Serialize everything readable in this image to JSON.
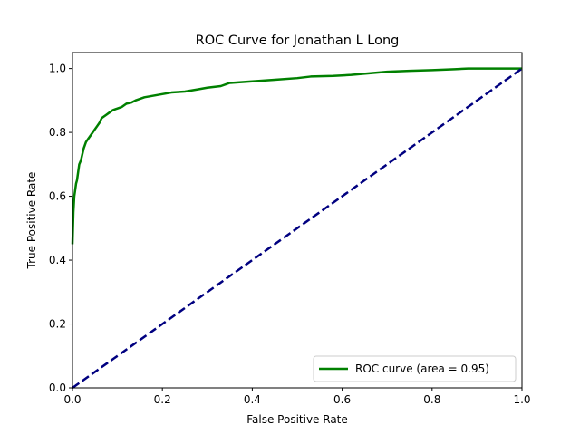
{
  "chart_data": {
    "type": "line",
    "title": "ROC Curve for Jonathan L Long",
    "xlabel": "False Positive Rate",
    "ylabel": "True Positive Rate",
    "xlim": [
      0.0,
      1.0
    ],
    "ylim": [
      0.0,
      1.05
    ],
    "x_ticks": [
      "0.0",
      "0.2",
      "0.4",
      "0.6",
      "0.8",
      "1.0"
    ],
    "y_ticks": [
      "0.0",
      "0.2",
      "0.4",
      "0.6",
      "0.8",
      "1.0"
    ],
    "grid": false,
    "legend_position": "lower-right",
    "series": [
      {
        "name": "ROC curve (area = 0.95)",
        "color": "#008000",
        "style": "solid",
        "x": [
          0.0,
          0.001,
          0.002,
          0.004,
          0.006,
          0.008,
          0.01,
          0.012,
          0.015,
          0.018,
          0.02,
          0.025,
          0.03,
          0.035,
          0.04,
          0.045,
          0.05,
          0.055,
          0.06,
          0.065,
          0.07,
          0.075,
          0.08,
          0.09,
          0.1,
          0.11,
          0.12,
          0.13,
          0.14,
          0.15,
          0.16,
          0.18,
          0.2,
          0.22,
          0.25,
          0.28,
          0.3,
          0.33,
          0.35,
          0.4,
          0.45,
          0.5,
          0.53,
          0.58,
          0.62,
          0.66,
          0.7,
          0.75,
          0.8,
          0.85,
          0.88,
          0.95,
          1.0
        ],
        "y": [
          0.45,
          0.5,
          0.55,
          0.6,
          0.62,
          0.64,
          0.65,
          0.67,
          0.7,
          0.71,
          0.72,
          0.75,
          0.77,
          0.78,
          0.79,
          0.8,
          0.81,
          0.82,
          0.83,
          0.845,
          0.85,
          0.855,
          0.86,
          0.87,
          0.875,
          0.88,
          0.89,
          0.893,
          0.9,
          0.905,
          0.91,
          0.915,
          0.92,
          0.925,
          0.928,
          0.935,
          0.94,
          0.945,
          0.955,
          0.96,
          0.965,
          0.97,
          0.975,
          0.977,
          0.98,
          0.985,
          0.99,
          0.993,
          0.995,
          0.998,
          1.0,
          1.0,
          1.0
        ]
      },
      {
        "name": "",
        "color": "#000080",
        "style": "dashed",
        "x": [
          0.0,
          1.0
        ],
        "y": [
          0.0,
          1.0
        ]
      }
    ]
  }
}
